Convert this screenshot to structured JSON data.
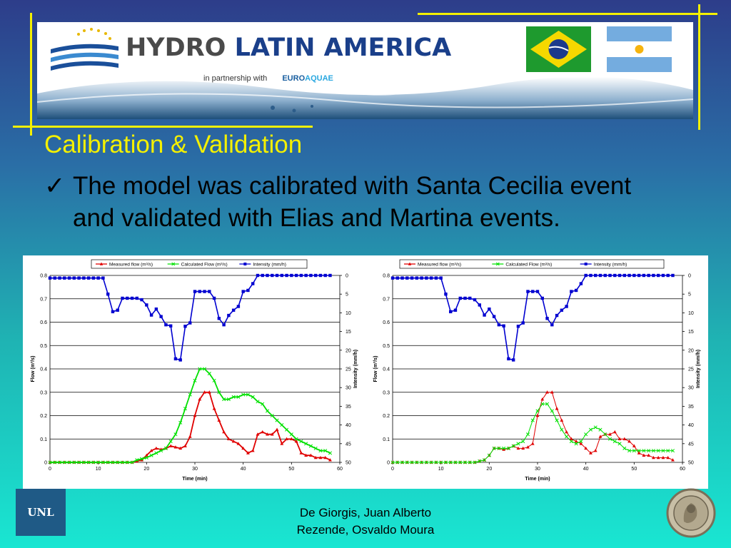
{
  "banner": {
    "logo_word1": "HYDRO",
    "logo_word2": "LATIN AMERICA",
    "partnership_text": "in partnership with",
    "partner_name_1": "EURO",
    "partner_name_2": "AQUAE"
  },
  "slide": {
    "title": "Calibration & Validation",
    "bullet_mark": "✓",
    "bullet_text": "The model was calibrated with Santa Cecilia event and validated with Elias and Martina events."
  },
  "footer": {
    "logo_text": "UNL",
    "author_line1": "De Giorgis, Juan Alberto",
    "author_line2": "Rezende, Osvaldo Moura"
  },
  "colors": {
    "accent_yellow": "#f4f000",
    "measured": "#e00000",
    "calculated": "#00e000",
    "intensity": "#0000d0"
  },
  "chart_data": [
    {
      "type": "line",
      "title": "",
      "xlabel": "Time (min)",
      "ylabel": "Flow (m³/s)",
      "y2label": "Intensity (mm/h)",
      "xlim": [
        0,
        60
      ],
      "ylim": [
        0,
        0.8
      ],
      "y2lim_reversed": [
        0,
        50
      ],
      "xticks": [
        0,
        10,
        20,
        30,
        40,
        50,
        60
      ],
      "yticks": [
        0,
        0.1,
        0.2,
        0.3,
        0.4,
        0.5,
        0.6,
        0.7,
        0.8
      ],
      "y2ticks": [
        0,
        5,
        10,
        15,
        20,
        25,
        30,
        35,
        40,
        45,
        50
      ],
      "legend_position": "top",
      "series": [
        {
          "name": "Measured flow (m³/s)",
          "axis": "left",
          "marker": "triangle",
          "x": [
            0,
            1,
            2,
            3,
            4,
            5,
            6,
            7,
            8,
            9,
            10,
            11,
            12,
            13,
            14,
            15,
            16,
            17,
            18,
            19,
            20,
            21,
            22,
            23,
            24,
            25,
            26,
            27,
            28,
            29,
            30,
            31,
            32,
            33,
            34,
            35,
            36,
            37,
            38,
            39,
            40,
            41,
            42,
            43,
            44,
            45,
            46,
            47,
            48,
            49,
            50,
            51,
            52,
            53,
            54,
            55,
            56,
            57,
            58
          ],
          "y": [
            0,
            0,
            0,
            0,
            0,
            0,
            0,
            0,
            0,
            0,
            0,
            0,
            0,
            0,
            0,
            0,
            0,
            0,
            0.005,
            0.01,
            0.03,
            0.05,
            0.06,
            0.055,
            0.06,
            0.07,
            0.065,
            0.06,
            0.07,
            0.11,
            0.2,
            0.27,
            0.3,
            0.3,
            0.23,
            0.18,
            0.13,
            0.1,
            0.09,
            0.08,
            0.06,
            0.04,
            0.05,
            0.12,
            0.13,
            0.12,
            0.12,
            0.14,
            0.08,
            0.1,
            0.1,
            0.09,
            0.04,
            0.03,
            0.03,
            0.02,
            0.02,
            0.02,
            0.01
          ]
        },
        {
          "name": "Calculated Flow (m³/s)",
          "axis": "left",
          "marker": "x",
          "x": [
            0,
            1,
            2,
            3,
            4,
            5,
            6,
            7,
            8,
            9,
            10,
            11,
            12,
            13,
            14,
            15,
            16,
            17,
            18,
            19,
            20,
            21,
            22,
            23,
            24,
            25,
            26,
            27,
            28,
            29,
            30,
            31,
            32,
            33,
            34,
            35,
            36,
            37,
            38,
            39,
            40,
            41,
            42,
            43,
            44,
            45,
            46,
            47,
            48,
            49,
            50,
            51,
            52,
            53,
            54,
            55,
            56,
            57,
            58
          ],
          "y": [
            0,
            0,
            0,
            0,
            0,
            0,
            0,
            0,
            0,
            0,
            0,
            0,
            0,
            0,
            0,
            0,
            0,
            0,
            0.01,
            0.015,
            0.02,
            0.03,
            0.04,
            0.05,
            0.06,
            0.09,
            0.12,
            0.17,
            0.23,
            0.29,
            0.35,
            0.4,
            0.4,
            0.38,
            0.35,
            0.3,
            0.27,
            0.27,
            0.28,
            0.28,
            0.29,
            0.29,
            0.28,
            0.26,
            0.25,
            0.22,
            0.2,
            0.18,
            0.16,
            0.14,
            0.12,
            0.1,
            0.09,
            0.08,
            0.07,
            0.06,
            0.05,
            0.05,
            0.04
          ]
        },
        {
          "name": "Intensity (mm/h)",
          "axis": "right",
          "marker": "square",
          "x": [
            0,
            1,
            2,
            3,
            4,
            5,
            6,
            7,
            8,
            9,
            10,
            11,
            12,
            13,
            14,
            15,
            16,
            17,
            18,
            19,
            20,
            21,
            22,
            23,
            24,
            25,
            26,
            27,
            28,
            29,
            30,
            31,
            32,
            33,
            34,
            35,
            36,
            37,
            38,
            39,
            40,
            41,
            42,
            43,
            44,
            45,
            46,
            47,
            48,
            49,
            50,
            51,
            52,
            53,
            54,
            55,
            56,
            57,
            58
          ],
          "y": [
            0.7,
            0.7,
            0.7,
            0.7,
            0.7,
            0.7,
            0.7,
            0.7,
            0.7,
            0.7,
            0.7,
            0.7,
            5,
            9.7,
            9.3,
            6.1,
            6.1,
            6.1,
            6.1,
            6.5,
            7.9,
            10.6,
            9,
            11,
            13.2,
            13.5,
            22.3,
            22.6,
            13.6,
            12.7,
            4.3,
            4.3,
            4.3,
            4.3,
            6.1,
            11.5,
            13.2,
            10.7,
            9.3,
            8.3,
            4.3,
            4,
            2.2,
            0,
            0,
            0,
            0,
            0,
            0,
            0,
            0,
            0,
            0,
            0,
            0,
            0,
            0,
            0,
            0
          ]
        }
      ]
    },
    {
      "type": "line",
      "title": "",
      "xlabel": "Time (min)",
      "ylabel": "Flow (m³/s)",
      "y2label": "Intensity (mm/h)",
      "xlim": [
        0,
        60
      ],
      "ylim": [
        0,
        0.8
      ],
      "y2lim_reversed": [
        0,
        50
      ],
      "xticks": [
        0,
        10,
        20,
        30,
        40,
        50,
        60
      ],
      "yticks": [
        0,
        0.1,
        0.2,
        0.3,
        0.4,
        0.5,
        0.6,
        0.7,
        0.8
      ],
      "y2ticks": [
        0,
        5,
        10,
        15,
        20,
        25,
        30,
        35,
        40,
        45,
        50
      ],
      "legend_position": "top",
      "series": [
        {
          "name": "Measured flow (m³/s)",
          "axis": "left",
          "marker": "triangle",
          "x": [
            0,
            1,
            2,
            3,
            4,
            5,
            6,
            7,
            8,
            9,
            10,
            11,
            12,
            13,
            14,
            15,
            16,
            17,
            18,
            19,
            20,
            21,
            22,
            23,
            24,
            25,
            26,
            27,
            28,
            29,
            30,
            31,
            32,
            33,
            34,
            35,
            36,
            37,
            38,
            39,
            40,
            41,
            42,
            43,
            44,
            45,
            46,
            47,
            48,
            49,
            50,
            51,
            52,
            53,
            54,
            55,
            56,
            57,
            58
          ],
          "y": [
            0,
            0,
            0,
            0,
            0,
            0,
            0,
            0,
            0,
            0,
            0,
            0,
            0,
            0,
            0,
            0,
            0,
            0,
            0.005,
            0.01,
            0.03,
            0.06,
            0.06,
            0.055,
            0.06,
            0.07,
            0.06,
            0.06,
            0.065,
            0.08,
            0.2,
            0.27,
            0.3,
            0.3,
            0.23,
            0.18,
            0.13,
            0.1,
            0.09,
            0.08,
            0.06,
            0.04,
            0.05,
            0.11,
            0.12,
            0.12,
            0.13,
            0.1,
            0.1,
            0.09,
            0.07,
            0.04,
            0.03,
            0.03,
            0.02,
            0.02,
            0.02,
            0.02,
            0.01
          ]
        },
        {
          "name": "Calculated Flow (m³/s)",
          "axis": "left",
          "marker": "x",
          "x": [
            0,
            1,
            2,
            3,
            4,
            5,
            6,
            7,
            8,
            9,
            10,
            11,
            12,
            13,
            14,
            15,
            16,
            17,
            18,
            19,
            20,
            21,
            22,
            23,
            24,
            25,
            26,
            27,
            28,
            29,
            30,
            31,
            32,
            33,
            34,
            35,
            36,
            37,
            38,
            39,
            40,
            41,
            42,
            43,
            44,
            45,
            46,
            47,
            48,
            49,
            50,
            51,
            52,
            53,
            54,
            55,
            56,
            57,
            58
          ],
          "y": [
            0,
            0,
            0,
            0,
            0,
            0,
            0,
            0,
            0,
            0,
            0,
            0,
            0,
            0,
            0,
            0,
            0,
            0,
            0.005,
            0.01,
            0.03,
            0.06,
            0.06,
            0.06,
            0.06,
            0.07,
            0.08,
            0.09,
            0.12,
            0.18,
            0.22,
            0.25,
            0.25,
            0.22,
            0.18,
            0.14,
            0.11,
            0.09,
            0.08,
            0.09,
            0.12,
            0.14,
            0.15,
            0.14,
            0.12,
            0.1,
            0.09,
            0.08,
            0.06,
            0.05,
            0.05,
            0.05,
            0.05,
            0.05,
            0.05,
            0.05,
            0.05,
            0.05,
            0.05
          ]
        },
        {
          "name": "Intensity (mm/h)",
          "axis": "right",
          "marker": "square",
          "x": [
            0,
            1,
            2,
            3,
            4,
            5,
            6,
            7,
            8,
            9,
            10,
            11,
            12,
            13,
            14,
            15,
            16,
            17,
            18,
            19,
            20,
            21,
            22,
            23,
            24,
            25,
            26,
            27,
            28,
            29,
            30,
            31,
            32,
            33,
            34,
            35,
            36,
            37,
            38,
            39,
            40,
            41,
            42,
            43,
            44,
            45,
            46,
            47,
            48,
            49,
            50,
            51,
            52,
            53,
            54,
            55,
            56,
            57,
            58
          ],
          "y": [
            0.7,
            0.7,
            0.7,
            0.7,
            0.7,
            0.7,
            0.7,
            0.7,
            0.7,
            0.7,
            0.7,
            5,
            9.7,
            9.3,
            6.1,
            6.1,
            6.1,
            6.5,
            7.9,
            10.6,
            9,
            11,
            13.2,
            13.5,
            22.3,
            22.6,
            13.6,
            12.7,
            4.3,
            4.3,
            4.3,
            6.1,
            11.5,
            13.2,
            10.7,
            9.3,
            8.3,
            4.3,
            4,
            2.2,
            0,
            0,
            0,
            0,
            0,
            0,
            0,
            0,
            0,
            0,
            0,
            0,
            0,
            0,
            0,
            0,
            0,
            0,
            0
          ]
        }
      ]
    }
  ]
}
